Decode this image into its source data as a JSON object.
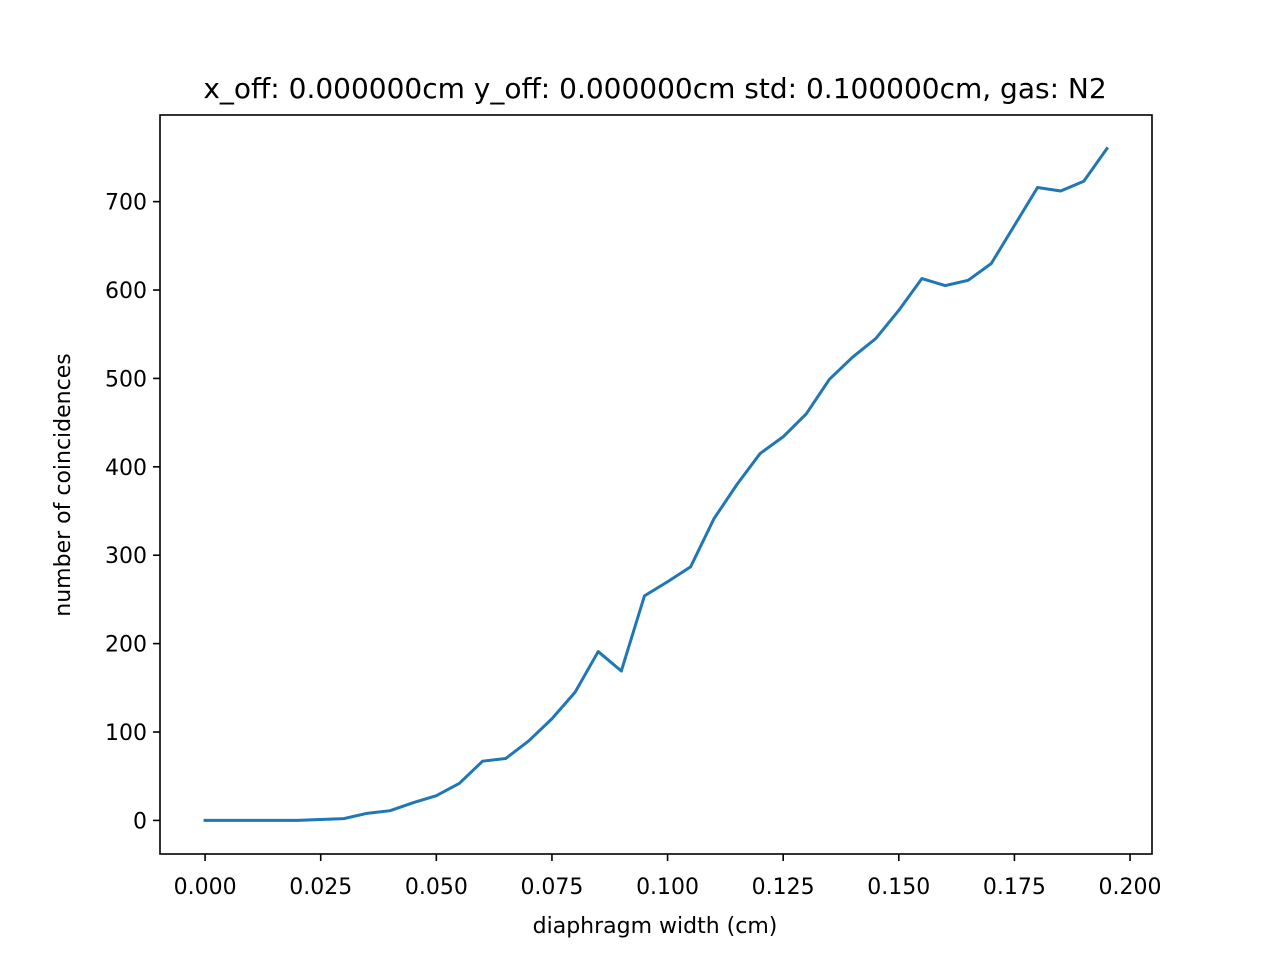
{
  "chart_data": {
    "type": "line",
    "title": "x_off: 0.000000cm y_off: 0.000000cm std: 0.100000cm, gas: N2",
    "xlabel": "diaphragm width (cm)",
    "ylabel": "number of coincidences",
    "xlim": [
      -0.00975,
      0.20475
    ],
    "ylim": [
      -38,
      798
    ],
    "x_ticks": [
      0.0,
      0.025,
      0.05,
      0.075,
      0.1,
      0.125,
      0.15,
      0.175,
      0.2
    ],
    "x_tick_labels": [
      "0.000",
      "0.025",
      "0.050",
      "0.075",
      "0.100",
      "0.125",
      "0.150",
      "0.175",
      "0.200"
    ],
    "y_ticks": [
      0,
      100,
      200,
      300,
      400,
      500,
      600,
      700
    ],
    "y_tick_labels": [
      "0",
      "100",
      "200",
      "300",
      "400",
      "500",
      "600",
      "700"
    ],
    "grid": false,
    "series": [
      {
        "color": "#1f77b4",
        "x": [
          0.0,
          0.005,
          0.01,
          0.015,
          0.02,
          0.025,
          0.03,
          0.035,
          0.04,
          0.045,
          0.05,
          0.055,
          0.06,
          0.065,
          0.07,
          0.075,
          0.08,
          0.085,
          0.09,
          0.095,
          0.1,
          0.105,
          0.11,
          0.115,
          0.12,
          0.125,
          0.13,
          0.135,
          0.14,
          0.145,
          0.15,
          0.155,
          0.16,
          0.165,
          0.17,
          0.175,
          0.18,
          0.185,
          0.19,
          0.195
        ],
        "y": [
          0,
          0,
          0,
          0,
          0,
          1,
          2,
          8,
          11,
          20,
          28,
          42,
          67,
          70,
          90,
          115,
          145,
          191,
          169,
          254,
          270,
          287,
          341,
          380,
          415,
          434,
          460,
          499,
          524,
          545,
          577,
          613,
          605,
          611,
          630,
          673,
          716,
          712,
          723,
          760
        ]
      }
    ]
  }
}
